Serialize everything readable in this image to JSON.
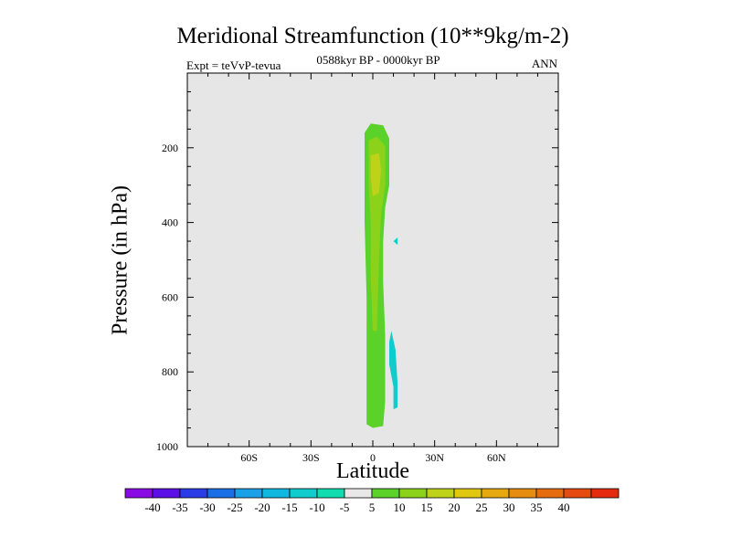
{
  "title": "Meridional Streamfunction (10**9kg/m-2)",
  "subtitle_left": "Expt = teVvP-tevua",
  "subtitle_center": "0588kyr BP - 0000kyr BP",
  "subtitle_right": "ANN",
  "colors": {
    "plot_background": "#e6e6e6",
    "palette": [
      "#8a0ae6",
      "#5a10e6",
      "#2a3ce6",
      "#1a6ee6",
      "#1aa0e6",
      "#10b8e0",
      "#10cccc",
      "#10dcb0",
      "#e8e8e8",
      "#5ad22a",
      "#8cd21a",
      "#bed21a",
      "#e0c810",
      "#e6aa10",
      "#e68c10",
      "#e66c10",
      "#e64a10",
      "#e62a10"
    ]
  },
  "chart_data": {
    "type": "contour",
    "title": "Meridional Streamfunction (10**9kg/m-2)",
    "xlabel": "Latitude",
    "ylabel": "Pressure (in hPa)",
    "xlim": [
      -90,
      90
    ],
    "ylim": [
      1000,
      0
    ],
    "xticks": [
      -60,
      -30,
      0,
      30,
      60
    ],
    "xtick_labels": [
      "60S",
      "30S",
      "0",
      "30N",
      "60N"
    ],
    "yticks": [
      200,
      400,
      600,
      800,
      1000
    ],
    "ytick_labels": [
      "200",
      "400",
      "600",
      "800",
      "1000"
    ],
    "colorbar": {
      "levels": [
        -40,
        -35,
        -30,
        -25,
        -20,
        -15,
        -10,
        -5,
        5,
        10,
        15,
        20,
        25,
        30,
        35,
        40
      ],
      "labels": [
        "-40",
        "-35",
        "-30",
        "-25",
        "-20",
        "-15",
        "-10",
        "-5",
        "5",
        "10",
        "15",
        "20",
        "25",
        "30",
        "35",
        "40"
      ]
    },
    "regions": [
      {
        "value_range": "5 to 10",
        "lat_range": [
          -4,
          9
        ],
        "pressure_range": [
          135,
          950
        ]
      },
      {
        "value_range": "10 to 15",
        "lat_range": [
          -3,
          7
        ],
        "pressure_range": [
          175,
          690
        ]
      },
      {
        "value_range": "15 to 20",
        "lat_range": [
          -2,
          5
        ],
        "pressure_range": [
          215,
          330
        ]
      },
      {
        "value_range": "-10 to -5",
        "lat_range": [
          8,
          12
        ],
        "pressure_range": [
          680,
          900
        ]
      },
      {
        "value_range": "-10 to -5",
        "lat_range": [
          10,
          12
        ],
        "pressure_range": [
          440,
          460
        ]
      }
    ]
  }
}
